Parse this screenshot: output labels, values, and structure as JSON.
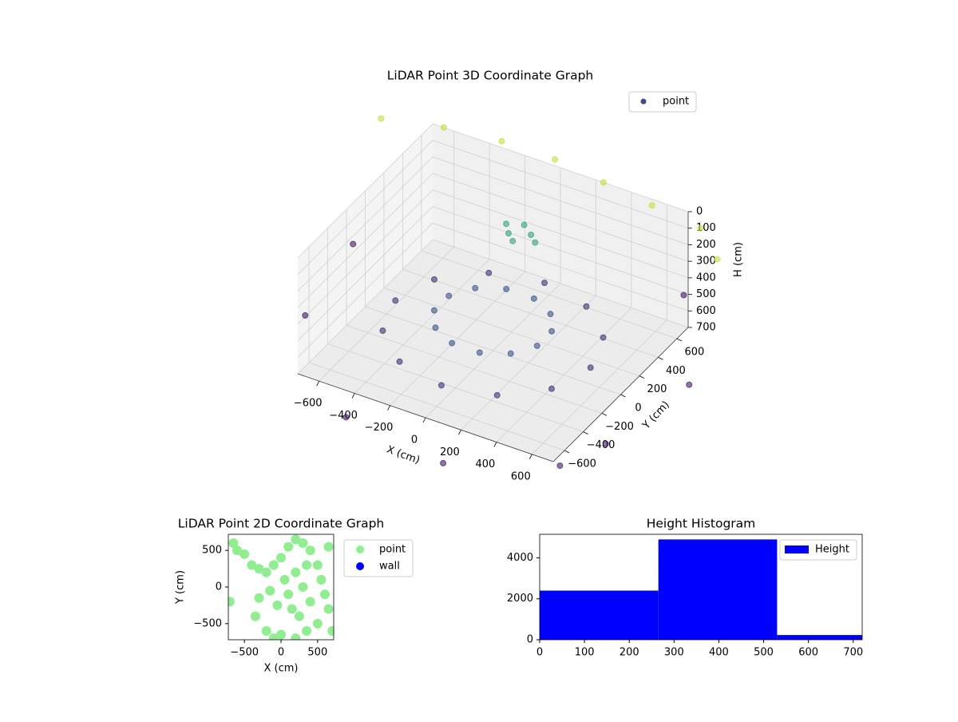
{
  "chart_data": [
    {
      "type": "scatter3d",
      "title": "LiDAR Point 3D Coordinate Graph",
      "x_label": "X (cm)",
      "y_label": "Y (cm)",
      "z_label": "H (cm)",
      "xlim": [
        -720,
        720
      ],
      "ylim": [
        -720,
        720
      ],
      "zlim": [
        0,
        700
      ],
      "z_inverted": true,
      "xticks": [
        {
          "value": -600,
          "label": "−600"
        },
        {
          "value": -400,
          "label": "−400"
        },
        {
          "value": -200,
          "label": "−200"
        },
        0,
        200,
        400,
        600
      ],
      "yticks": [
        {
          "value": -600,
          "label": "−600"
        },
        {
          "value": -400,
          "label": "−400"
        },
        {
          "value": -200,
          "label": "−200"
        },
        0,
        200,
        400,
        600
      ],
      "zticks": [
        0,
        100,
        200,
        300,
        400,
        500,
        600,
        700
      ],
      "colormap": "viridis",
      "grid": true,
      "legend": "upper right",
      "series": [
        {
          "name": "point",
          "color": "#3f4a8a",
          "x": [
            550,
            476,
            275,
            0,
            -275,
            -476,
            -550,
            -476,
            -275,
            0,
            275,
            476,
            290,
            212,
            78,
            -78,
            -212,
            -290,
            -290,
            -212,
            -78,
            78,
            212,
            290,
            -150,
            -50,
            -100,
            0,
            -200,
            -120,
            -900,
            800,
            1000,
            -300,
            300,
            900,
            -1000,
            600,
            -1000,
            -700,
            -400,
            -100,
            200,
            500,
            800,
            1000
          ],
          "y": [
            0,
            275,
            476,
            550,
            476,
            275,
            0,
            -275,
            -476,
            -550,
            -476,
            -275,
            78,
            212,
            290,
            290,
            212,
            78,
            -78,
            -212,
            -290,
            -290,
            -212,
            -78,
            450,
            500,
            400,
            450,
            520,
            560,
            -300,
            -800,
            200,
            -1000,
            -1100,
            -500,
            400,
            900,
            700,
            800,
            850,
            850,
            800,
            750,
            700,
            500
          ],
          "z": [
            600,
            600,
            600,
            600,
            600,
            600,
            600,
            600,
            600,
            600,
            600,
            600,
            520,
            520,
            520,
            520,
            520,
            520,
            520,
            520,
            520,
            520,
            520,
            520,
            300,
            300,
            300,
            300,
            300,
            300,
            650,
            650,
            650,
            650,
            650,
            650,
            650,
            650,
            60,
            60,
            60,
            60,
            60,
            60,
            60,
            60
          ]
        }
      ]
    },
    {
      "type": "scatter",
      "title": "LiDAR Point 2D Coordinate Graph",
      "x_label": "X (cm)",
      "y_label": "Y (cm)",
      "xlim": [
        -720,
        720
      ],
      "ylim": [
        -720,
        720
      ],
      "xticks": [
        {
          "value": -500,
          "label": "−500"
        },
        0,
        500
      ],
      "yticks": [
        {
          "value": -500,
          "label": "−500"
        },
        0,
        500
      ],
      "legend": "outside right",
      "series": [
        {
          "name": "point",
          "color": "#90ee90",
          "x": [
            -650,
            -600,
            -500,
            -400,
            -300,
            -200,
            -100,
            0,
            100,
            200,
            300,
            400,
            500,
            550,
            600,
            650,
            500,
            350,
            200,
            0,
            -200,
            -350,
            -300,
            -150,
            50,
            200,
            300,
            400,
            150,
            250,
            -50,
            100,
            350,
            -700,
            650,
            700,
            -100
          ],
          "y": [
            600,
            500,
            450,
            300,
            250,
            200,
            300,
            400,
            550,
            650,
            600,
            500,
            300,
            100,
            -100,
            -300,
            -500,
            -600,
            -700,
            -650,
            -600,
            -400,
            -150,
            -50,
            100,
            200,
            0,
            -200,
            -300,
            -400,
            -250,
            -100,
            300,
            -200,
            550,
            -600,
            -700
          ]
        },
        {
          "name": "wall",
          "color": "#0000ff",
          "x": [],
          "y": []
        }
      ]
    },
    {
      "type": "histogram",
      "title": "Height Histogram",
      "bins": [
        0,
        265,
        530,
        720
      ],
      "xlim": [
        0,
        720
      ],
      "ylim": [
        0,
        5150
      ],
      "xticks": [
        0,
        100,
        200,
        300,
        400,
        500,
        600,
        700
      ],
      "yticks": [
        0,
        2000,
        4000
      ],
      "legend": "upper right",
      "series": [
        {
          "name": "Height",
          "color": "#0000ff",
          "values": [
            2400,
            4900,
            230
          ]
        }
      ]
    }
  ]
}
